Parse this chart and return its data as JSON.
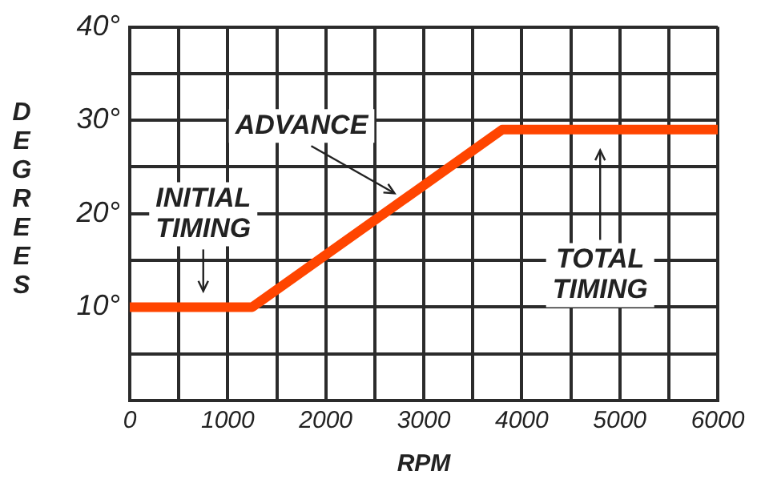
{
  "chart_data": {
    "type": "line",
    "xlabel": "RPM",
    "ylabel": "DEGREES",
    "x": [
      0,
      1250,
      3800,
      6000
    ],
    "series": [
      {
        "color": "#ff4500",
        "values": [
          10,
          10,
          29,
          29
        ]
      }
    ],
    "xlim": [
      0,
      6000
    ],
    "xticks": [
      0,
      {
        "value": 500,
        "label": null
      },
      1000,
      {
        "value": 1500,
        "label": null
      },
      2000,
      {
        "value": 2500,
        "label": null
      },
      3000,
      {
        "value": 3500,
        "label": null
      },
      4000,
      {
        "value": 4500,
        "label": null
      },
      5000,
      {
        "value": 5500,
        "label": null
      },
      6000
    ],
    "ylim": [
      0,
      40
    ],
    "yticks": [
      {
        "value": 0,
        "label": null
      },
      {
        "value": 5,
        "label": null
      },
      {
        "value": 10,
        "label": "10°"
      },
      {
        "value": 15,
        "label": null
      },
      {
        "value": 20,
        "label": "20°"
      },
      {
        "value": 25,
        "label": null
      },
      {
        "value": 30,
        "label": "30°"
      },
      {
        "value": 35,
        "label": null
      },
      {
        "value": 40,
        "label": "40°"
      }
    ],
    "grid": true,
    "marker": "none",
    "line_style": "solid",
    "legend": false,
    "annotations": [
      {
        "text": "INITIAL TIMING",
        "x": 750,
        "y": 10
      },
      {
        "text": "ADVANCE",
        "x": 2800,
        "y": 21.5
      },
      "TOTAL TIMING"
    ]
  }
}
